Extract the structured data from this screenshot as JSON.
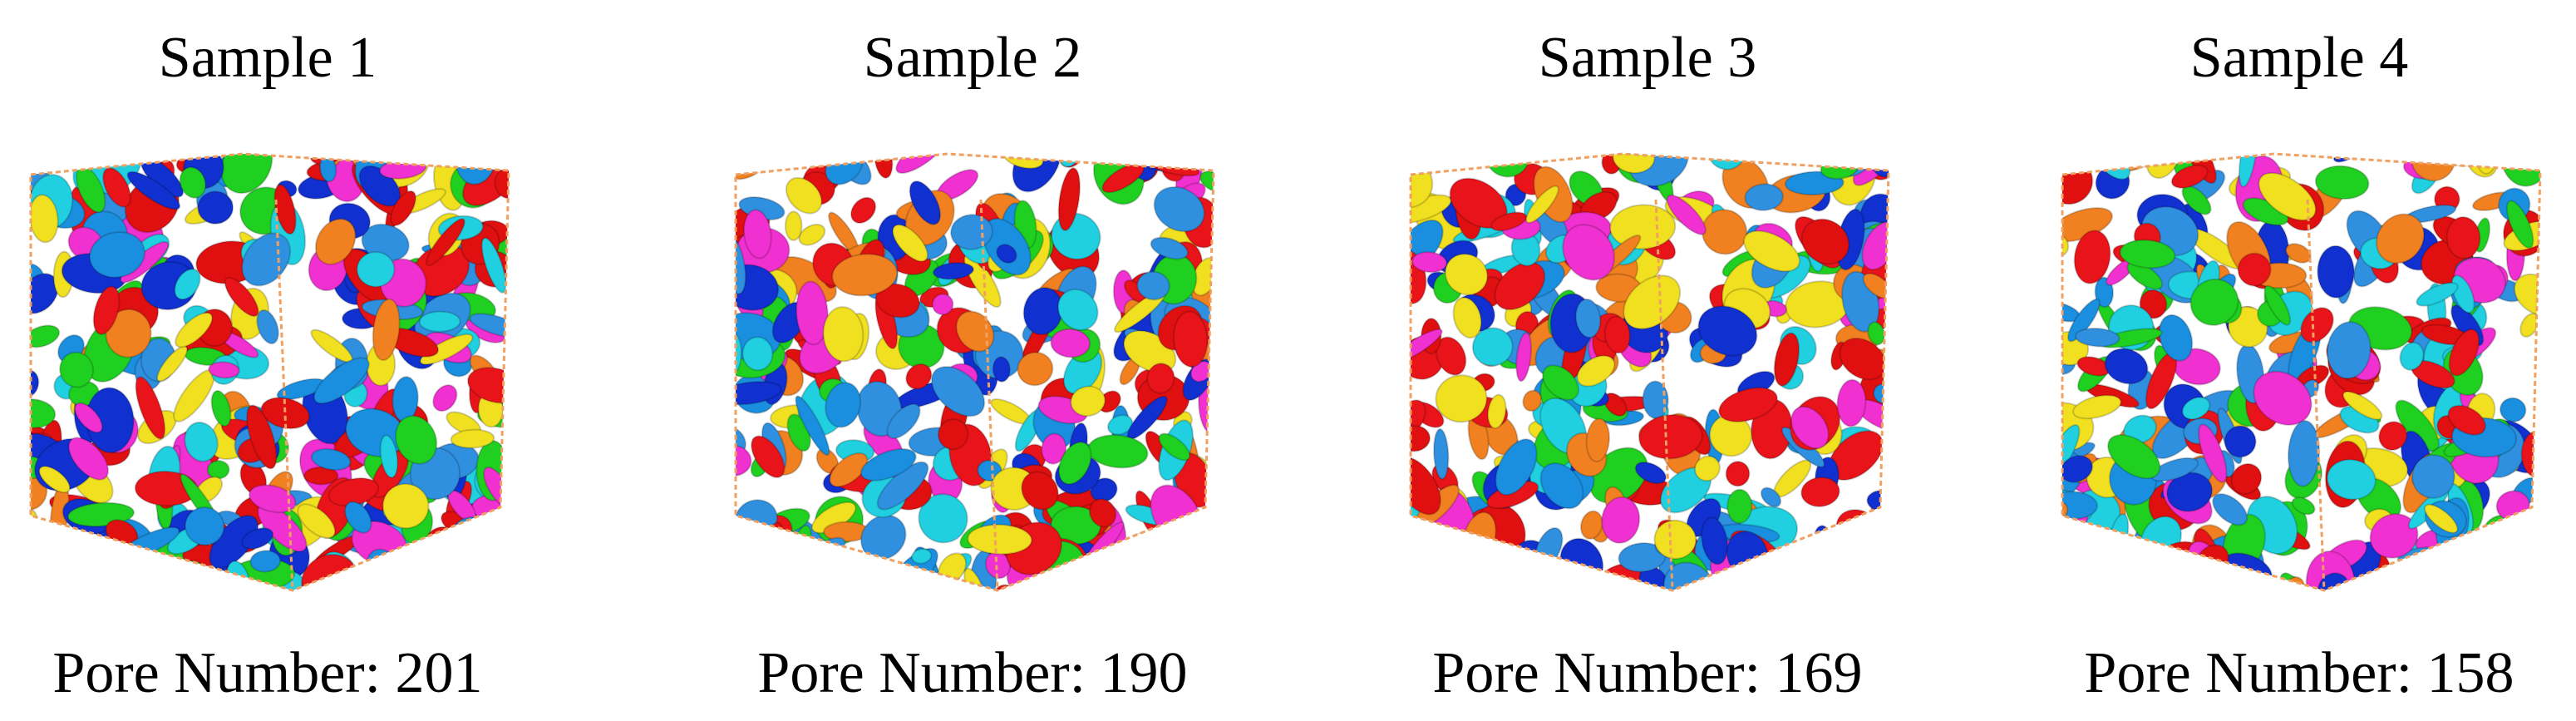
{
  "panels": [
    {
      "title": "Sample 1",
      "caption": "Pore Number: 201"
    },
    {
      "title": "Sample 2",
      "caption": "Pore Number: 190"
    },
    {
      "title": "Sample 3",
      "caption": "Pore Number: 169"
    },
    {
      "title": "Sample 4",
      "caption": "Pore Number: 158"
    }
  ]
}
